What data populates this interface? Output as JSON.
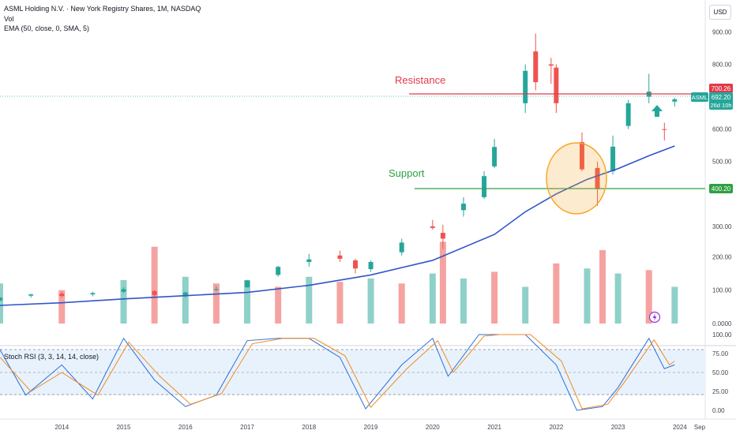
{
  "header": {
    "title": "ASML Holding N.V. · New York Registry Shares, 1M, NASDAQ",
    "volume_label": "Vol",
    "ema_label": "EMA (50, close, 0, SMA, 5)",
    "currency": "USD"
  },
  "annotations": {
    "resistance": {
      "text": "Resistance",
      "level": 700.26,
      "color": "#e03a4a"
    },
    "support": {
      "text": "Support",
      "level": 400.2,
      "color": "#2ea043"
    },
    "circle_color": "#f5a623"
  },
  "price_tags": {
    "resistance_tag": "700.26",
    "symbol": "ASML",
    "last_price": "692.20",
    "countdown": "26d 10h",
    "support_tag": "400.20"
  },
  "price_axis": {
    "ticks": [
      {
        "label": "900.00",
        "value": 900
      },
      {
        "label": "800.00",
        "value": 800
      },
      {
        "label": "600.00",
        "value": 600
      },
      {
        "label": "500.00",
        "value": 500
      },
      {
        "label": "300.00",
        "value": 300
      }
    ]
  },
  "volume_axis": {
    "ticks": [
      {
        "label": "200.00",
        "value": 200
      },
      {
        "label": "100.00",
        "value": 100
      },
      {
        "label": "0.0000",
        "value": 0
      }
    ]
  },
  "stoch_panel": {
    "label": "Stoch RSI (3, 3, 14, 14, close)",
    "ticks": [
      {
        "label": "100.00",
        "value": 100
      },
      {
        "label": "75.00",
        "value": 75
      },
      {
        "label": "50.00",
        "value": 50
      },
      {
        "label": "25.00",
        "value": 25
      },
      {
        "label": "0.00",
        "value": 0
      }
    ]
  },
  "time_axis": {
    "labels": [
      "2014",
      "2015",
      "2016",
      "2017",
      "2018",
      "2019",
      "2020",
      "2021",
      "2022",
      "2023",
      "2024",
      "Sep"
    ]
  },
  "colors": {
    "up": "#26a69a",
    "down": "#ef5350",
    "up_volume": "#8fd1c8",
    "down_volume": "#f5a3a1",
    "ema": "#2f55c8",
    "stoch_k": "#2f6fd6",
    "stoch_d": "#f08a24",
    "band_fill": "#e8f2fc"
  },
  "chart_data": [
    {
      "type": "candlestick",
      "title": "ASML Holding N.V. · New York Registry Shares, 1M, NASDAQ",
      "interval": "1M",
      "ylim": [
        0,
        950
      ],
      "series": [
        {
          "name": "ASML",
          "points": [
            {
              "x": "2013-01",
              "o": 71,
              "h": 82,
              "l": 69,
              "c": 80
            },
            {
              "x": "2013-07",
              "o": 86,
              "h": 92,
              "l": 80,
              "c": 90
            },
            {
              "x": "2014-01",
              "o": 92,
              "h": 98,
              "l": 80,
              "c": 85
            },
            {
              "x": "2014-07",
              "o": 90,
              "h": 98,
              "l": 84,
              "c": 94
            },
            {
              "x": "2015-01",
              "o": 98,
              "h": 112,
              "l": 94,
              "c": 106
            },
            {
              "x": "2015-07",
              "o": 100,
              "h": 104,
              "l": 80,
              "c": 88
            },
            {
              "x": "2016-01",
              "o": 88,
              "h": 98,
              "l": 80,
              "c": 96
            },
            {
              "x": "2016-07",
              "o": 104,
              "h": 115,
              "l": 100,
              "c": 106
            },
            {
              "x": "2017-01",
              "o": 112,
              "h": 135,
              "l": 110,
              "c": 133
            },
            {
              "x": "2017-07",
              "o": 150,
              "h": 178,
              "l": 145,
              "c": 175
            },
            {
              "x": "2018-01",
              "o": 190,
              "h": 215,
              "l": 175,
              "c": 198
            },
            {
              "x": "2018-07",
              "o": 210,
              "h": 225,
              "l": 190,
              "c": 200
            },
            {
              "x": "2018-10",
              "o": 195,
              "h": 200,
              "l": 155,
              "c": 170
            },
            {
              "x": "2019-01",
              "o": 168,
              "h": 195,
              "l": 160,
              "c": 190
            },
            {
              "x": "2019-07",
              "o": 220,
              "h": 262,
              "l": 210,
              "c": 250
            },
            {
              "x": "2020-01",
              "o": 300,
              "h": 320,
              "l": 290,
              "c": 295
            },
            {
              "x": "2020-03",
              "o": 280,
              "h": 305,
              "l": 230,
              "c": 262
            },
            {
              "x": "2020-07",
              "o": 350,
              "h": 390,
              "l": 330,
              "c": 370
            },
            {
              "x": "2020-11",
              "o": 390,
              "h": 470,
              "l": 385,
              "c": 455
            },
            {
              "x": "2021-01",
              "o": 485,
              "h": 570,
              "l": 480,
              "c": 545
            },
            {
              "x": "2021-07",
              "o": 680,
              "h": 800,
              "l": 650,
              "c": 780
            },
            {
              "x": "2021-09",
              "o": 840,
              "h": 895,
              "l": 720,
              "c": 745
            },
            {
              "x": "2021-12",
              "o": 800,
              "h": 820,
              "l": 740,
              "c": 796
            },
            {
              "x": "2022-01",
              "o": 790,
              "h": 800,
              "l": 650,
              "c": 680
            },
            {
              "x": "2022-06",
              "o": 560,
              "h": 590,
              "l": 470,
              "c": 476
            },
            {
              "x": "2022-09",
              "o": 480,
              "h": 500,
              "l": 363,
              "c": 415
            },
            {
              "x": "2022-12",
              "o": 470,
              "h": 580,
              "l": 460,
              "c": 546
            },
            {
              "x": "2023-03",
              "o": 610,
              "h": 690,
              "l": 600,
              "c": 680
            },
            {
              "x": "2023-07",
              "o": 700,
              "h": 771,
              "l": 680,
              "c": 716
            },
            {
              "x": "2023-10",
              "o": 600,
              "h": 620,
              "l": 565,
              "c": 598
            },
            {
              "x": "2023-12",
              "o": 685,
              "h": 697,
              "l": 670,
              "c": 692.2
            }
          ]
        },
        {
          "name": "EMA (50, close, 0, SMA, 5)",
          "points": [
            {
              "x": "2013-01",
              "y": 56
            },
            {
              "x": "2014-01",
              "y": 64
            },
            {
              "x": "2015-01",
              "y": 76
            },
            {
              "x": "2016-01",
              "y": 86
            },
            {
              "x": "2017-01",
              "y": 96
            },
            {
              "x": "2018-01",
              "y": 118
            },
            {
              "x": "2019-01",
              "y": 150
            },
            {
              "x": "2020-01",
              "y": 195
            },
            {
              "x": "2021-01",
              "y": 275
            },
            {
              "x": "2021-07",
              "y": 345
            },
            {
              "x": "2022-01",
              "y": 400
            },
            {
              "x": "2022-07",
              "y": 445
            },
            {
              "x": "2023-01",
              "y": 478
            },
            {
              "x": "2023-07",
              "y": 518
            },
            {
              "x": "2023-12",
              "y": 548
            }
          ]
        }
      ]
    },
    {
      "type": "bar",
      "title": "Vol",
      "ylim": [
        0,
        260
      ],
      "series": [
        {
          "name": "Vol",
          "points": [
            {
              "x": "2013-01",
              "y": 120
            },
            {
              "x": "2014-01",
              "y": 100
            },
            {
              "x": "2015-01",
              "y": 130
            },
            {
              "x": "2015-07",
              "y": 230
            },
            {
              "x": "2016-01",
              "y": 140
            },
            {
              "x": "2016-07",
              "y": 120
            },
            {
              "x": "2017-01",
              "y": 130
            },
            {
              "x": "2017-07",
              "y": 110
            },
            {
              "x": "2018-01",
              "y": 140
            },
            {
              "x": "2018-07",
              "y": 125
            },
            {
              "x": "2019-01",
              "y": 135
            },
            {
              "x": "2019-07",
              "y": 120
            },
            {
              "x": "2020-01",
              "y": 150
            },
            {
              "x": "2020-03",
              "y": 245
            },
            {
              "x": "2020-07",
              "y": 135
            },
            {
              "x": "2021-01",
              "y": 155
            },
            {
              "x": "2021-07",
              "y": 110
            },
            {
              "x": "2022-01",
              "y": 180
            },
            {
              "x": "2022-07",
              "y": 165
            },
            {
              "x": "2022-10",
              "y": 220
            },
            {
              "x": "2023-01",
              "y": 150
            },
            {
              "x": "2023-07",
              "y": 160
            },
            {
              "x": "2023-12",
              "y": 110
            }
          ]
        }
      ]
    },
    {
      "type": "line",
      "title": "Stoch RSI (3, 3, 14, 14, close)",
      "ylim": [
        0,
        100
      ],
      "series": [
        {
          "name": "K",
          "points": [
            {
              "x": "2013-01",
              "y": 80
            },
            {
              "x": "2013-06",
              "y": 20
            },
            {
              "x": "2014-01",
              "y": 60
            },
            {
              "x": "2014-07",
              "y": 15
            },
            {
              "x": "2015-01",
              "y": 95
            },
            {
              "x": "2015-07",
              "y": 40
            },
            {
              "x": "2016-01",
              "y": 5
            },
            {
              "x": "2016-07",
              "y": 20
            },
            {
              "x": "2017-01",
              "y": 92
            },
            {
              "x": "2017-07",
              "y": 95
            },
            {
              "x": "2018-01",
              "y": 95
            },
            {
              "x": "2018-07",
              "y": 70
            },
            {
              "x": "2018-12",
              "y": 2
            },
            {
              "x": "2019-07",
              "y": 60
            },
            {
              "x": "2020-01",
              "y": 95
            },
            {
              "x": "2020-04",
              "y": 45
            },
            {
              "x": "2020-10",
              "y": 100
            },
            {
              "x": "2021-01",
              "y": 100
            },
            {
              "x": "2021-07",
              "y": 100
            },
            {
              "x": "2022-01",
              "y": 60
            },
            {
              "x": "2022-05",
              "y": 0
            },
            {
              "x": "2022-10",
              "y": 5
            },
            {
              "x": "2023-01",
              "y": 30
            },
            {
              "x": "2023-07",
              "y": 95
            },
            {
              "x": "2023-10",
              "y": 55
            },
            {
              "x": "2023-12",
              "y": 60
            }
          ]
        },
        {
          "name": "D",
          "points": [
            {
              "x": "2013-01",
              "y": 70
            },
            {
              "x": "2013-07",
              "y": 25
            },
            {
              "x": "2014-01",
              "y": 50
            },
            {
              "x": "2014-08",
              "y": 20
            },
            {
              "x": "2015-02",
              "y": 90
            },
            {
              "x": "2015-08",
              "y": 45
            },
            {
              "x": "2016-02",
              "y": 8
            },
            {
              "x": "2016-08",
              "y": 22
            },
            {
              "x": "2017-02",
              "y": 88
            },
            {
              "x": "2017-08",
              "y": 95
            },
            {
              "x": "2018-02",
              "y": 95
            },
            {
              "x": "2018-08",
              "y": 72
            },
            {
              "x": "2019-01",
              "y": 4
            },
            {
              "x": "2019-08",
              "y": 55
            },
            {
              "x": "2020-02",
              "y": 92
            },
            {
              "x": "2020-05",
              "y": 50
            },
            {
              "x": "2020-11",
              "y": 98
            },
            {
              "x": "2021-02",
              "y": 100
            },
            {
              "x": "2021-08",
              "y": 100
            },
            {
              "x": "2022-02",
              "y": 65
            },
            {
              "x": "2022-06",
              "y": 2
            },
            {
              "x": "2022-11",
              "y": 8
            },
            {
              "x": "2023-02",
              "y": 35
            },
            {
              "x": "2023-08",
              "y": 93
            },
            {
              "x": "2023-11",
              "y": 60
            },
            {
              "x": "2023-12",
              "y": 65
            }
          ]
        }
      ]
    }
  ]
}
